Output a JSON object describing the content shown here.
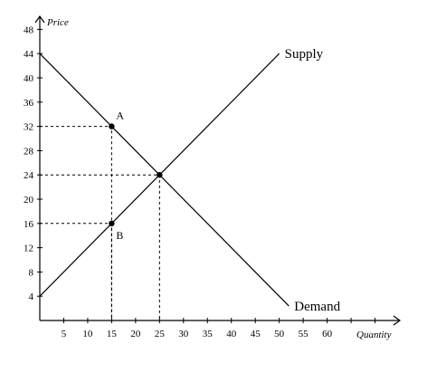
{
  "chart_data": {
    "type": "line",
    "xlabel": "Quantity",
    "ylabel": "Price",
    "xlim": [
      0,
      75
    ],
    "ylim": [
      0,
      50
    ],
    "x_ticks": [
      5,
      10,
      15,
      20,
      25,
      30,
      35,
      40,
      45,
      50,
      55,
      60
    ],
    "y_ticks": [
      4,
      8,
      12,
      16,
      20,
      24,
      28,
      32,
      36,
      40,
      44,
      48
    ],
    "series": [
      {
        "name": "Supply",
        "x": [
          0,
          50
        ],
        "y": [
          4,
          44
        ]
      },
      {
        "name": "Demand",
        "x": [
          0,
          52
        ],
        "y": [
          44,
          2.4
        ]
      }
    ],
    "points": [
      {
        "label": "A",
        "x": 15,
        "y": 32
      },
      {
        "label": "",
        "x": 25,
        "y": 24
      },
      {
        "label": "B",
        "x": 15,
        "y": 16
      }
    ],
    "guides": [
      {
        "x": 15,
        "y": 32
      },
      {
        "x": 25,
        "y": 24
      },
      {
        "x": 15,
        "y": 16
      }
    ]
  }
}
